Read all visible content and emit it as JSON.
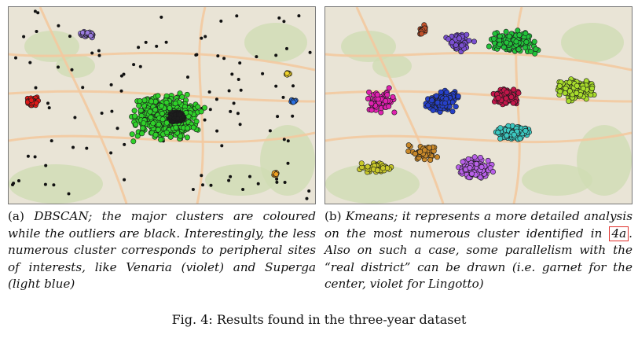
{
  "panel_a": {
    "label": "(a)",
    "caption_text": "DBSCAN; the major clusters are coloured while the outliers are black. Interestingly, the less numerous cluster corresponds to peripheral sites of interests, like Venaria (violet) and Superga (light blue)"
  },
  "panel_b": {
    "label": "(b)",
    "caption_before": "Kmeans; it represents a more detailed analysis on the most numerous cluster identified in",
    "caption_ref": "4a",
    "caption_after": ". Also on such a case, some parallelism with the “real district” can be drawn (i.e. garnet for the center, violet for Lingotto)"
  },
  "figure_caption": "Fig. 4: Results found in the three-year dataset",
  "colors": {
    "map_bg": "#e9e4d6",
    "map_green": "#cfdcb4",
    "road": "#f3c9a0",
    "dbscan_main": "#2fd12a",
    "dbscan_violet": "#9a7be0",
    "dbscan_red": "#e01818",
    "dbscan_blue": "#2a6fe0",
    "dbscan_yellow": "#f0d22a",
    "dbscan_orange": "#f0a020",
    "outlier": "#111111",
    "km_garnet": "#c4154a",
    "km_blue": "#2640c8",
    "km_green": "#22c23a",
    "km_lime": "#a8dc2c",
    "km_cyan": "#3cc8c0",
    "km_violet": "#b860e8",
    "km_magenta": "#e020b0",
    "km_brown": "#c8882a",
    "km_olive": "#c8c82a",
    "km_darkviolet": "#7a4fd0",
    "km_rust": "#c0502a"
  }
}
